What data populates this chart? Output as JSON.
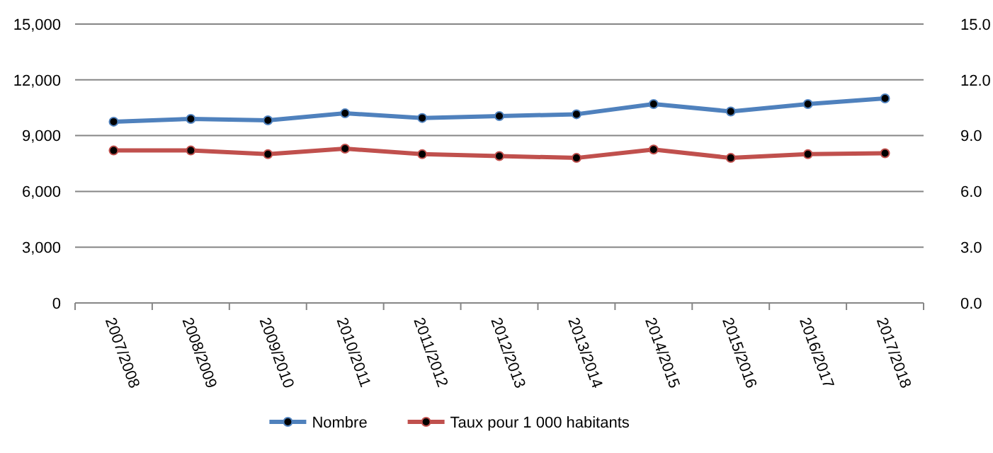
{
  "chart_data": {
    "type": "line",
    "categories": [
      "2007/2008",
      "2008/2009",
      "2009/2010",
      "2010/2011",
      "2011/2012",
      "2012/2013",
      "2013/2014",
      "2014/2015",
      "2015/2016",
      "2016/2017",
      "2017/2018"
    ],
    "series": [
      {
        "name": "Nombre",
        "color": "#4f81bd",
        "values": [
          9750,
          9900,
          9820,
          10200,
          9950,
          10050,
          10150,
          10700,
          10300,
          10700,
          11000
        ]
      },
      {
        "name": "Taux pour 1 000 habitants",
        "color": "#c0504d",
        "axis": "y2",
        "values": [
          8.2,
          8.2,
          8.0,
          8.3,
          8.0,
          7.9,
          7.8,
          8.25,
          7.8,
          8.0,
          8.05
        ]
      }
    ],
    "ylim": [
      0,
      15000
    ],
    "yticks": [
      {
        "value": 0,
        "label": "0"
      },
      {
        "value": 3000,
        "label": "3,000"
      },
      {
        "value": 6000,
        "label": "6,000"
      },
      {
        "value": 9000,
        "label": "9,000"
      },
      {
        "value": 12000,
        "label": "12,000"
      },
      {
        "value": 15000,
        "label": "15,000"
      }
    ],
    "y2lim": [
      0,
      15
    ],
    "y2ticks": [
      {
        "value": 0,
        "label": "0.0"
      },
      {
        "value": 3,
        "label": "3.0"
      },
      {
        "value": 6,
        "label": "6.0"
      },
      {
        "value": 9,
        "label": "9.0"
      },
      {
        "value": 12,
        "label": "12.0"
      },
      {
        "value": 15,
        "label": "15.0"
      }
    ],
    "grid": "y",
    "legend": "bottom",
    "marker": "circle",
    "line_style": "solid"
  }
}
